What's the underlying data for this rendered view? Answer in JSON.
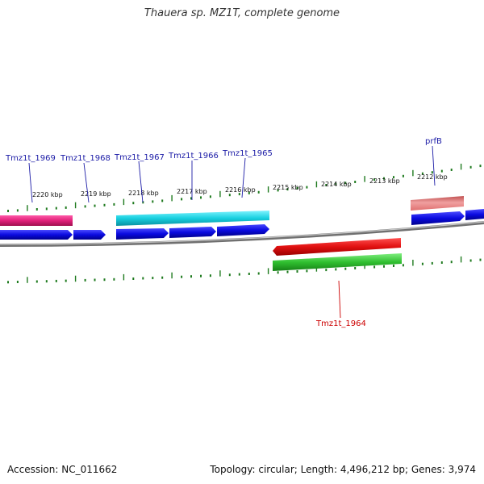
{
  "title": "Thauera sp. MZ1T, complete genome",
  "accession_label": "Accession: NC_011662",
  "summary_label": "Topology: circular; Length: 4,496,212 bp; Genes: 3,974",
  "scale_labels": [
    "2220 kbp",
    "2219 kbp",
    "2218 kbp",
    "2217 kbp",
    "2216 kbp",
    "2215 kbp",
    "2214 kbp",
    "2213 kbp",
    "2212 kbp"
  ],
  "gene_labels": [
    {
      "text": "Tmz1t_1969",
      "color": "#1a1aa6"
    },
    {
      "text": "Tmz1t_1968",
      "color": "#1a1aa6"
    },
    {
      "text": "Tmz1t_1967",
      "color": "#1a1aa6"
    },
    {
      "text": "Tmz1t_1966",
      "color": "#1a1aa6"
    },
    {
      "text": "Tmz1t_1965",
      "color": "#1a1aa6"
    },
    {
      "text": "prfB",
      "color": "#1a1aa6"
    },
    {
      "text": "Tmz1t_1964",
      "color": "#cc0000"
    }
  ],
  "colors": {
    "tick": "#1e7a1e",
    "backbone": "#888888",
    "cds": "#0a0ae0",
    "magenta": "#e0207a",
    "cyan": "#18d0e0",
    "red": "#e01010",
    "green": "#30c030",
    "salmon": "#e88080"
  }
}
